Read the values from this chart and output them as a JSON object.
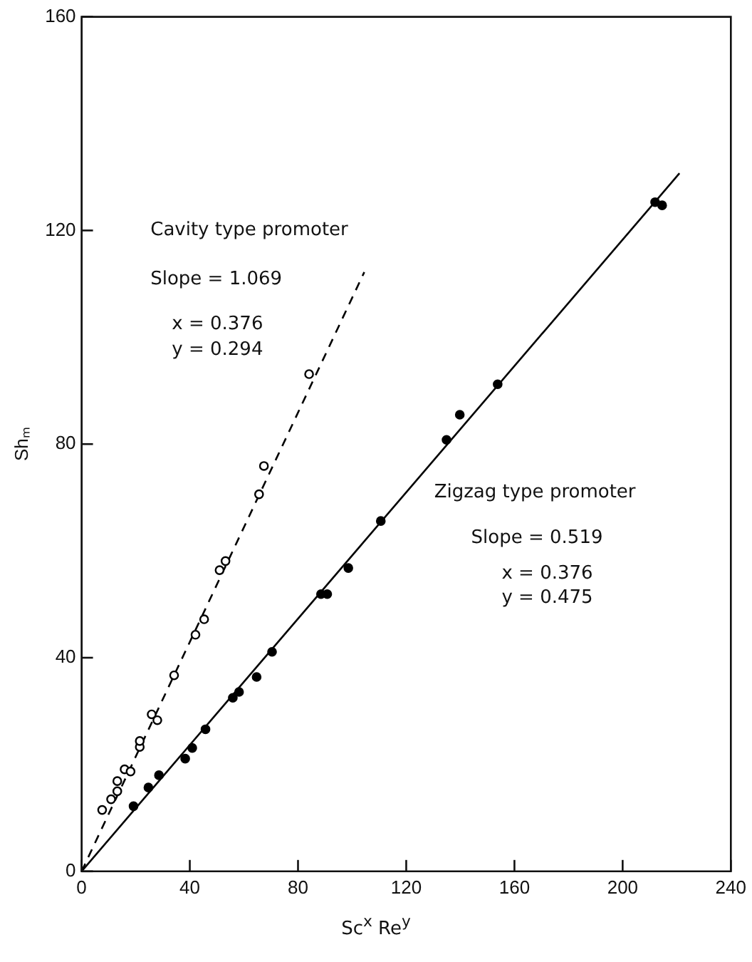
{
  "chart_data": {
    "type": "scatter",
    "xlabel": "Sc$^{x}$ Re$^{y}$",
    "ylabel": "Shₘ",
    "xlim": [
      0,
      240
    ],
    "xticks": [
      0,
      40,
      80,
      120,
      160,
      200,
      240
    ],
    "ylim": [
      0,
      160
    ],
    "yticks": [
      0,
      40,
      80,
      120,
      160
    ],
    "grid": false,
    "legend": false,
    "marker": "circle",
    "series": [
      {
        "color": "#000000",
        "x": [
          7.6,
          10.9,
          13.2,
          13.2,
          15.9,
          18.1,
          21.5,
          21.5,
          25.9,
          28.0,
          34.2,
          42.1,
          45.3,
          51.0,
          53.2,
          65.6,
          67.4,
          84.1
        ],
        "values": [
          11.5,
          13.5,
          15.0,
          16.9,
          19.1,
          18.7,
          23.3,
          24.4,
          29.4,
          28.3,
          36.7,
          44.3,
          47.2,
          56.4,
          58.1,
          70.6,
          75.9,
          93.1
        ]
      },
      {
        "color": "#000000",
        "x": [
          19.2,
          24.7,
          28.6,
          38.3,
          40.9,
          45.8,
          55.9,
          58.2,
          64.7,
          70.4,
          88.5,
          90.8,
          98.6,
          110.6,
          134.9,
          139.8,
          153.8,
          212.0,
          214.6
        ],
        "values": [
          12.2,
          15.7,
          18.0,
          21.1,
          23.1,
          26.6,
          32.5,
          33.6,
          36.4,
          41.1,
          51.9,
          51.9,
          56.8,
          65.6,
          80.8,
          85.5,
          91.2,
          125.3,
          124.7
        ]
      },
      {
        "type": "line",
        "color": "#000000",
        "marker": "none",
        "line_style": "dashed",
        "x": [
          0,
          104.5
        ],
        "values": [
          0,
          112.2
        ]
      },
      {
        "type": "line",
        "color": "#000000",
        "marker": "none",
        "line_style": "solid",
        "x": [
          0,
          221
        ],
        "values": [
          0,
          130.7
        ]
      }
    ],
    "annotations": [
      "Cavity type promoter",
      "Slope = 1.069",
      "x = 0.376",
      "y = 0.294",
      "Zigzag type promoter",
      "Slope = 0.519",
      "x = 0.376",
      "y = 0.475"
    ]
  }
}
